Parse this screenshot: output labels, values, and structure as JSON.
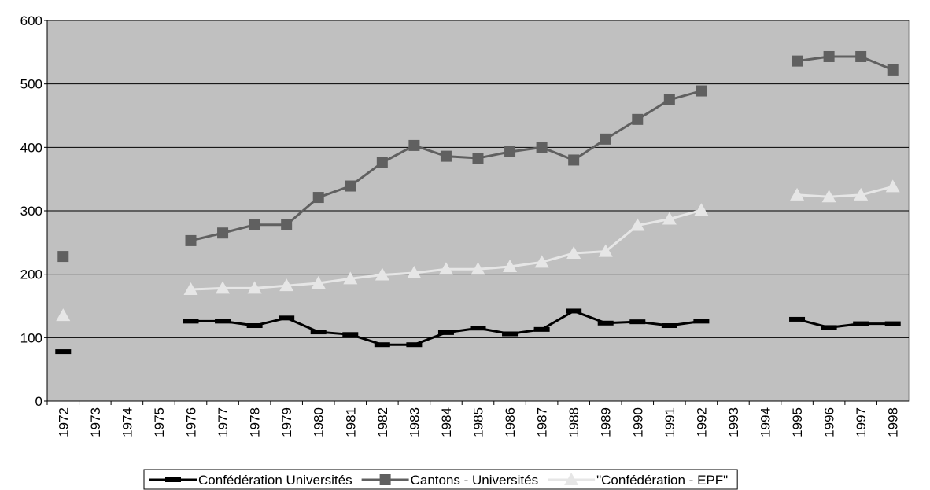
{
  "chart_data": {
    "type": "line",
    "categories": [
      "1972",
      "1973",
      "1974",
      "1975",
      "1976",
      "1977",
      "1978",
      "1979",
      "1980",
      "1981",
      "1982",
      "1983",
      "1984",
      "1985",
      "1986",
      "1987",
      "1988",
      "1989",
      "1990",
      "1991",
      "1992",
      "1993",
      "1994",
      "1995",
      "1996",
      "1997",
      "1998"
    ],
    "series": [
      {
        "name": "Confédération Universités",
        "color": "#000000",
        "marker": "dash",
        "values": [
          78,
          null,
          null,
          null,
          126,
          126,
          119,
          131,
          109,
          105,
          89,
          89,
          108,
          115,
          106,
          113,
          142,
          123,
          125,
          119,
          126,
          null,
          null,
          129,
          116,
          122,
          122
        ]
      },
      {
        "name": "Cantons - Universités",
        "color": "#606060",
        "marker": "square",
        "values": [
          228,
          null,
          null,
          null,
          253,
          265,
          278,
          278,
          321,
          339,
          376,
          403,
          386,
          383,
          393,
          400,
          380,
          413,
          444,
          475,
          489,
          null,
          null,
          536,
          543,
          543,
          522
        ]
      },
      {
        "name": "\"Confédération - EPF\"",
        "color": "#e6e6e6",
        "marker": "triangle",
        "values": [
          135,
          null,
          null,
          null,
          176,
          178,
          178,
          182,
          186,
          193,
          199,
          202,
          208,
          208,
          212,
          219,
          233,
          236,
          277,
          287,
          301,
          null,
          null,
          325,
          322,
          325,
          338
        ]
      }
    ],
    "ylim": [
      0,
      600
    ],
    "yticks": [
      0,
      100,
      200,
      300,
      400,
      500,
      600
    ],
    "grid": true,
    "legend": "bottom"
  }
}
